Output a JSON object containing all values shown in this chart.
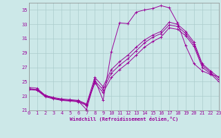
{
  "xlabel": "Windchill (Refroidissement éolien,°C)",
  "background_color": "#cce8e8",
  "line_color": "#990099",
  "grid_color": "#aacccc",
  "xmin": 0,
  "xmax": 23,
  "ymin": 21,
  "ymax": 36,
  "yticks": [
    21,
    23,
    25,
    27,
    29,
    31,
    33,
    35
  ],
  "xticks": [
    0,
    1,
    2,
    3,
    4,
    5,
    6,
    7,
    8,
    9,
    10,
    11,
    12,
    13,
    14,
    15,
    16,
    17,
    18,
    19,
    20,
    21,
    22,
    23
  ],
  "series1_x": [
    0,
    1,
    2,
    3,
    4,
    5,
    6,
    7,
    8,
    9,
    10,
    11,
    12,
    13,
    14,
    15,
    16,
    17,
    18,
    19,
    20,
    21,
    22,
    23
  ],
  "series1_y": [
    24.2,
    24.1,
    23.1,
    22.7,
    22.4,
    22.4,
    22.3,
    21.1,
    25.3,
    22.4,
    29.2,
    33.2,
    33.1,
    34.7,
    35.0,
    35.2,
    35.6,
    35.3,
    33.2,
    30.0,
    27.5,
    26.5,
    26.0,
    25.7
  ],
  "series2_x": [
    0,
    1,
    2,
    3,
    4,
    5,
    6,
    7,
    8,
    9,
    10,
    11,
    12,
    13,
    14,
    15,
    16,
    17,
    18,
    19,
    20,
    21,
    22,
    23
  ],
  "series2_y": [
    24.0,
    23.9,
    23.1,
    22.8,
    22.6,
    22.5,
    22.4,
    21.9,
    25.6,
    24.3,
    26.7,
    27.8,
    28.7,
    29.8,
    30.8,
    31.5,
    32.0,
    33.3,
    33.0,
    32.0,
    30.5,
    27.5,
    26.5,
    25.6
  ],
  "series3_x": [
    0,
    1,
    2,
    3,
    4,
    5,
    6,
    7,
    8,
    9,
    10,
    11,
    12,
    13,
    14,
    15,
    16,
    17,
    18,
    19,
    20,
    21,
    22,
    23
  ],
  "series3_y": [
    24.0,
    23.9,
    23.0,
    22.7,
    22.5,
    22.4,
    22.3,
    21.8,
    25.1,
    23.9,
    26.2,
    27.3,
    28.2,
    29.3,
    30.4,
    31.2,
    31.7,
    32.9,
    32.7,
    31.7,
    30.2,
    27.3,
    26.3,
    25.3
  ],
  "series4_x": [
    0,
    1,
    2,
    3,
    4,
    5,
    6,
    7,
    8,
    9,
    10,
    11,
    12,
    13,
    14,
    15,
    16,
    17,
    18,
    19,
    20,
    21,
    22,
    23
  ],
  "series4_y": [
    23.9,
    23.8,
    22.9,
    22.6,
    22.4,
    22.3,
    22.2,
    21.7,
    24.8,
    23.5,
    25.6,
    26.7,
    27.6,
    28.7,
    29.8,
    30.6,
    31.2,
    32.5,
    32.3,
    31.4,
    29.9,
    27.0,
    26.1,
    25.0
  ]
}
